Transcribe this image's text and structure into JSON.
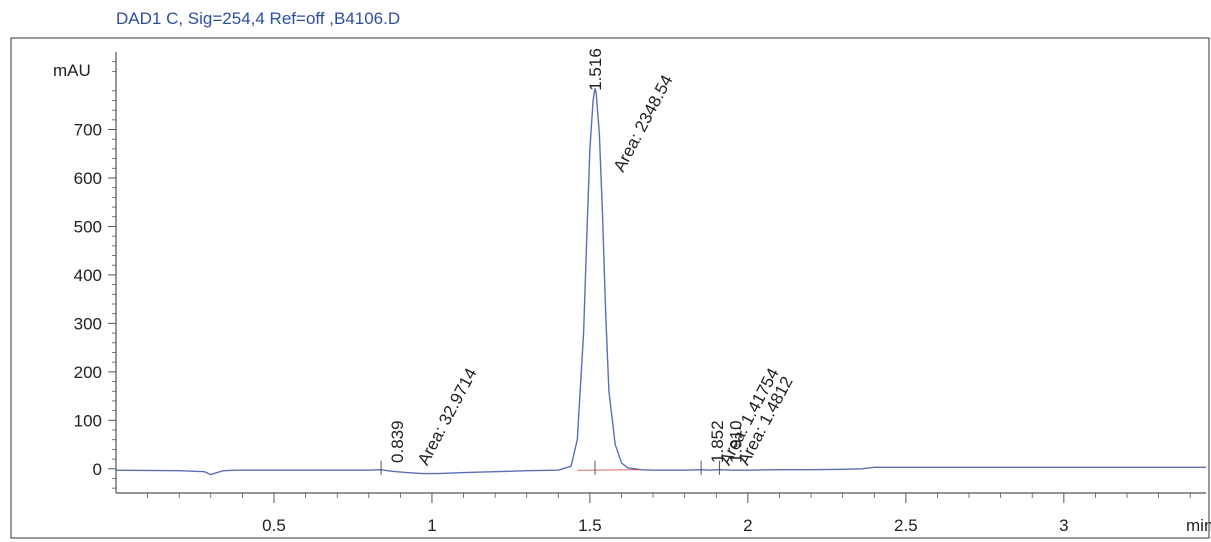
{
  "chart_data": {
    "type": "line",
    "title": "DAD1 C, Sig=254,4 Ref=off ,B4106.D",
    "ylabel": "mAU",
    "xlabel": "min",
    "xlim": [
      0.0,
      3.45
    ],
    "ylim": [
      -50,
      860
    ],
    "x_ticks": [
      0.5,
      1,
      1.5,
      2,
      2.5,
      3
    ],
    "x_tick_labels": [
      "0.5",
      "1",
      "1.5",
      "2",
      "2.5",
      "3"
    ],
    "y_ticks": [
      0,
      100,
      200,
      300,
      400,
      500,
      600,
      700
    ],
    "y_tick_labels": [
      "0",
      "100",
      "200",
      "300",
      "400",
      "500",
      "600",
      "700"
    ],
    "grid": false,
    "colors": {
      "trace": "#5b6fb5",
      "frame": "#555555",
      "text": "#222222",
      "title": "#2e4e9e",
      "baseline": "#cc3333"
    },
    "series": [
      {
        "x": [
          0.0,
          0.2,
          0.28,
          0.3,
          0.32,
          0.34,
          0.38,
          0.5,
          0.7,
          0.8,
          0.839,
          0.87,
          0.92,
          0.97,
          1.02,
          1.1,
          1.2,
          1.3,
          1.4,
          1.44,
          1.46,
          1.48,
          1.49,
          1.5,
          1.51,
          1.516,
          1.52,
          1.53,
          1.54,
          1.55,
          1.56,
          1.58,
          1.6,
          1.62,
          1.66,
          1.7,
          1.8,
          1.852,
          1.88,
          1.91,
          1.95,
          2.0,
          2.1,
          2.2,
          2.3,
          2.36,
          2.4,
          2.6,
          2.8,
          3.0,
          3.2,
          3.45
        ],
        "y": [
          -3,
          -4,
          -6,
          -12,
          -8,
          -4,
          -3,
          -3,
          -3,
          -3,
          -2,
          -5,
          -8,
          -10,
          -10,
          -8,
          -6,
          -4,
          -3,
          5,
          60,
          280,
          480,
          660,
          760,
          785,
          775,
          690,
          520,
          320,
          160,
          50,
          12,
          2,
          -2,
          -3,
          -3,
          -2,
          -3,
          -2,
          -3,
          -3,
          -2,
          -2,
          -1,
          0,
          3,
          3,
          3,
          3,
          3,
          3
        ]
      }
    ],
    "peaks": [
      {
        "rt": "0.839",
        "area": "Area: 32.9714",
        "x": 0.839
      },
      {
        "rt": "1.516",
        "area": "Area: 2348.54",
        "x": 1.516
      },
      {
        "rt": "1.852",
        "area": "Area: 1.41754",
        "x": 1.852
      },
      {
        "rt": "1.910",
        "area": "Area: 1.4812",
        "x": 1.91
      }
    ]
  }
}
